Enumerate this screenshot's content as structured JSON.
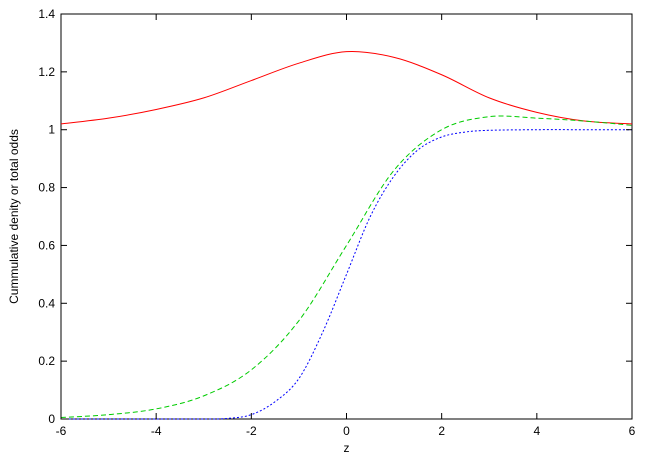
{
  "chart_data": {
    "type": "line",
    "title": "",
    "xlabel": "z",
    "ylabel": "Cummulative denity or total odds",
    "xlim": [
      -6,
      6
    ],
    "ylim": [
      0,
      1.4
    ],
    "xticks": [
      "-6",
      "-4",
      "-2",
      "0",
      "2",
      "4",
      "6"
    ],
    "yticks": [
      "0",
      "0.2",
      "0.4",
      "0.6",
      "0.8",
      "1",
      "1.2",
      "1.4"
    ],
    "grid": false,
    "legend": "none",
    "series": [
      {
        "color": "#ff0000",
        "style": "solid",
        "x": [
          -6,
          -5,
          -4,
          -3,
          -2,
          -1,
          0,
          1,
          2,
          3,
          4,
          5,
          6
        ],
        "y": [
          1.02,
          1.04,
          1.07,
          1.11,
          1.17,
          1.23,
          1.27,
          1.25,
          1.19,
          1.11,
          1.06,
          1.03,
          1.02
        ]
      },
      {
        "color": "#00cc00",
        "style": "dashed",
        "x": [
          -6,
          -5,
          -4,
          -3,
          -2,
          -1,
          0,
          1,
          2,
          3,
          4,
          5,
          6
        ],
        "y": [
          0.005,
          0.015,
          0.035,
          0.08,
          0.17,
          0.34,
          0.6,
          0.86,
          1.0,
          1.045,
          1.04,
          1.03,
          1.015
        ]
      },
      {
        "color": "#0000ff",
        "style": "dotted",
        "x": [
          -6,
          -5,
          -4,
          -3,
          -2.5,
          -2,
          -1.5,
          -1,
          -0.5,
          0,
          0.5,
          1,
          1.5,
          2,
          2.5,
          3,
          4,
          5,
          6
        ],
        "y": [
          0,
          0,
          0,
          0,
          0.002,
          0.015,
          0.06,
          0.14,
          0.3,
          0.5,
          0.7,
          0.84,
          0.93,
          0.975,
          0.992,
          0.998,
          1.0,
          1.0,
          1.0
        ]
      }
    ]
  }
}
